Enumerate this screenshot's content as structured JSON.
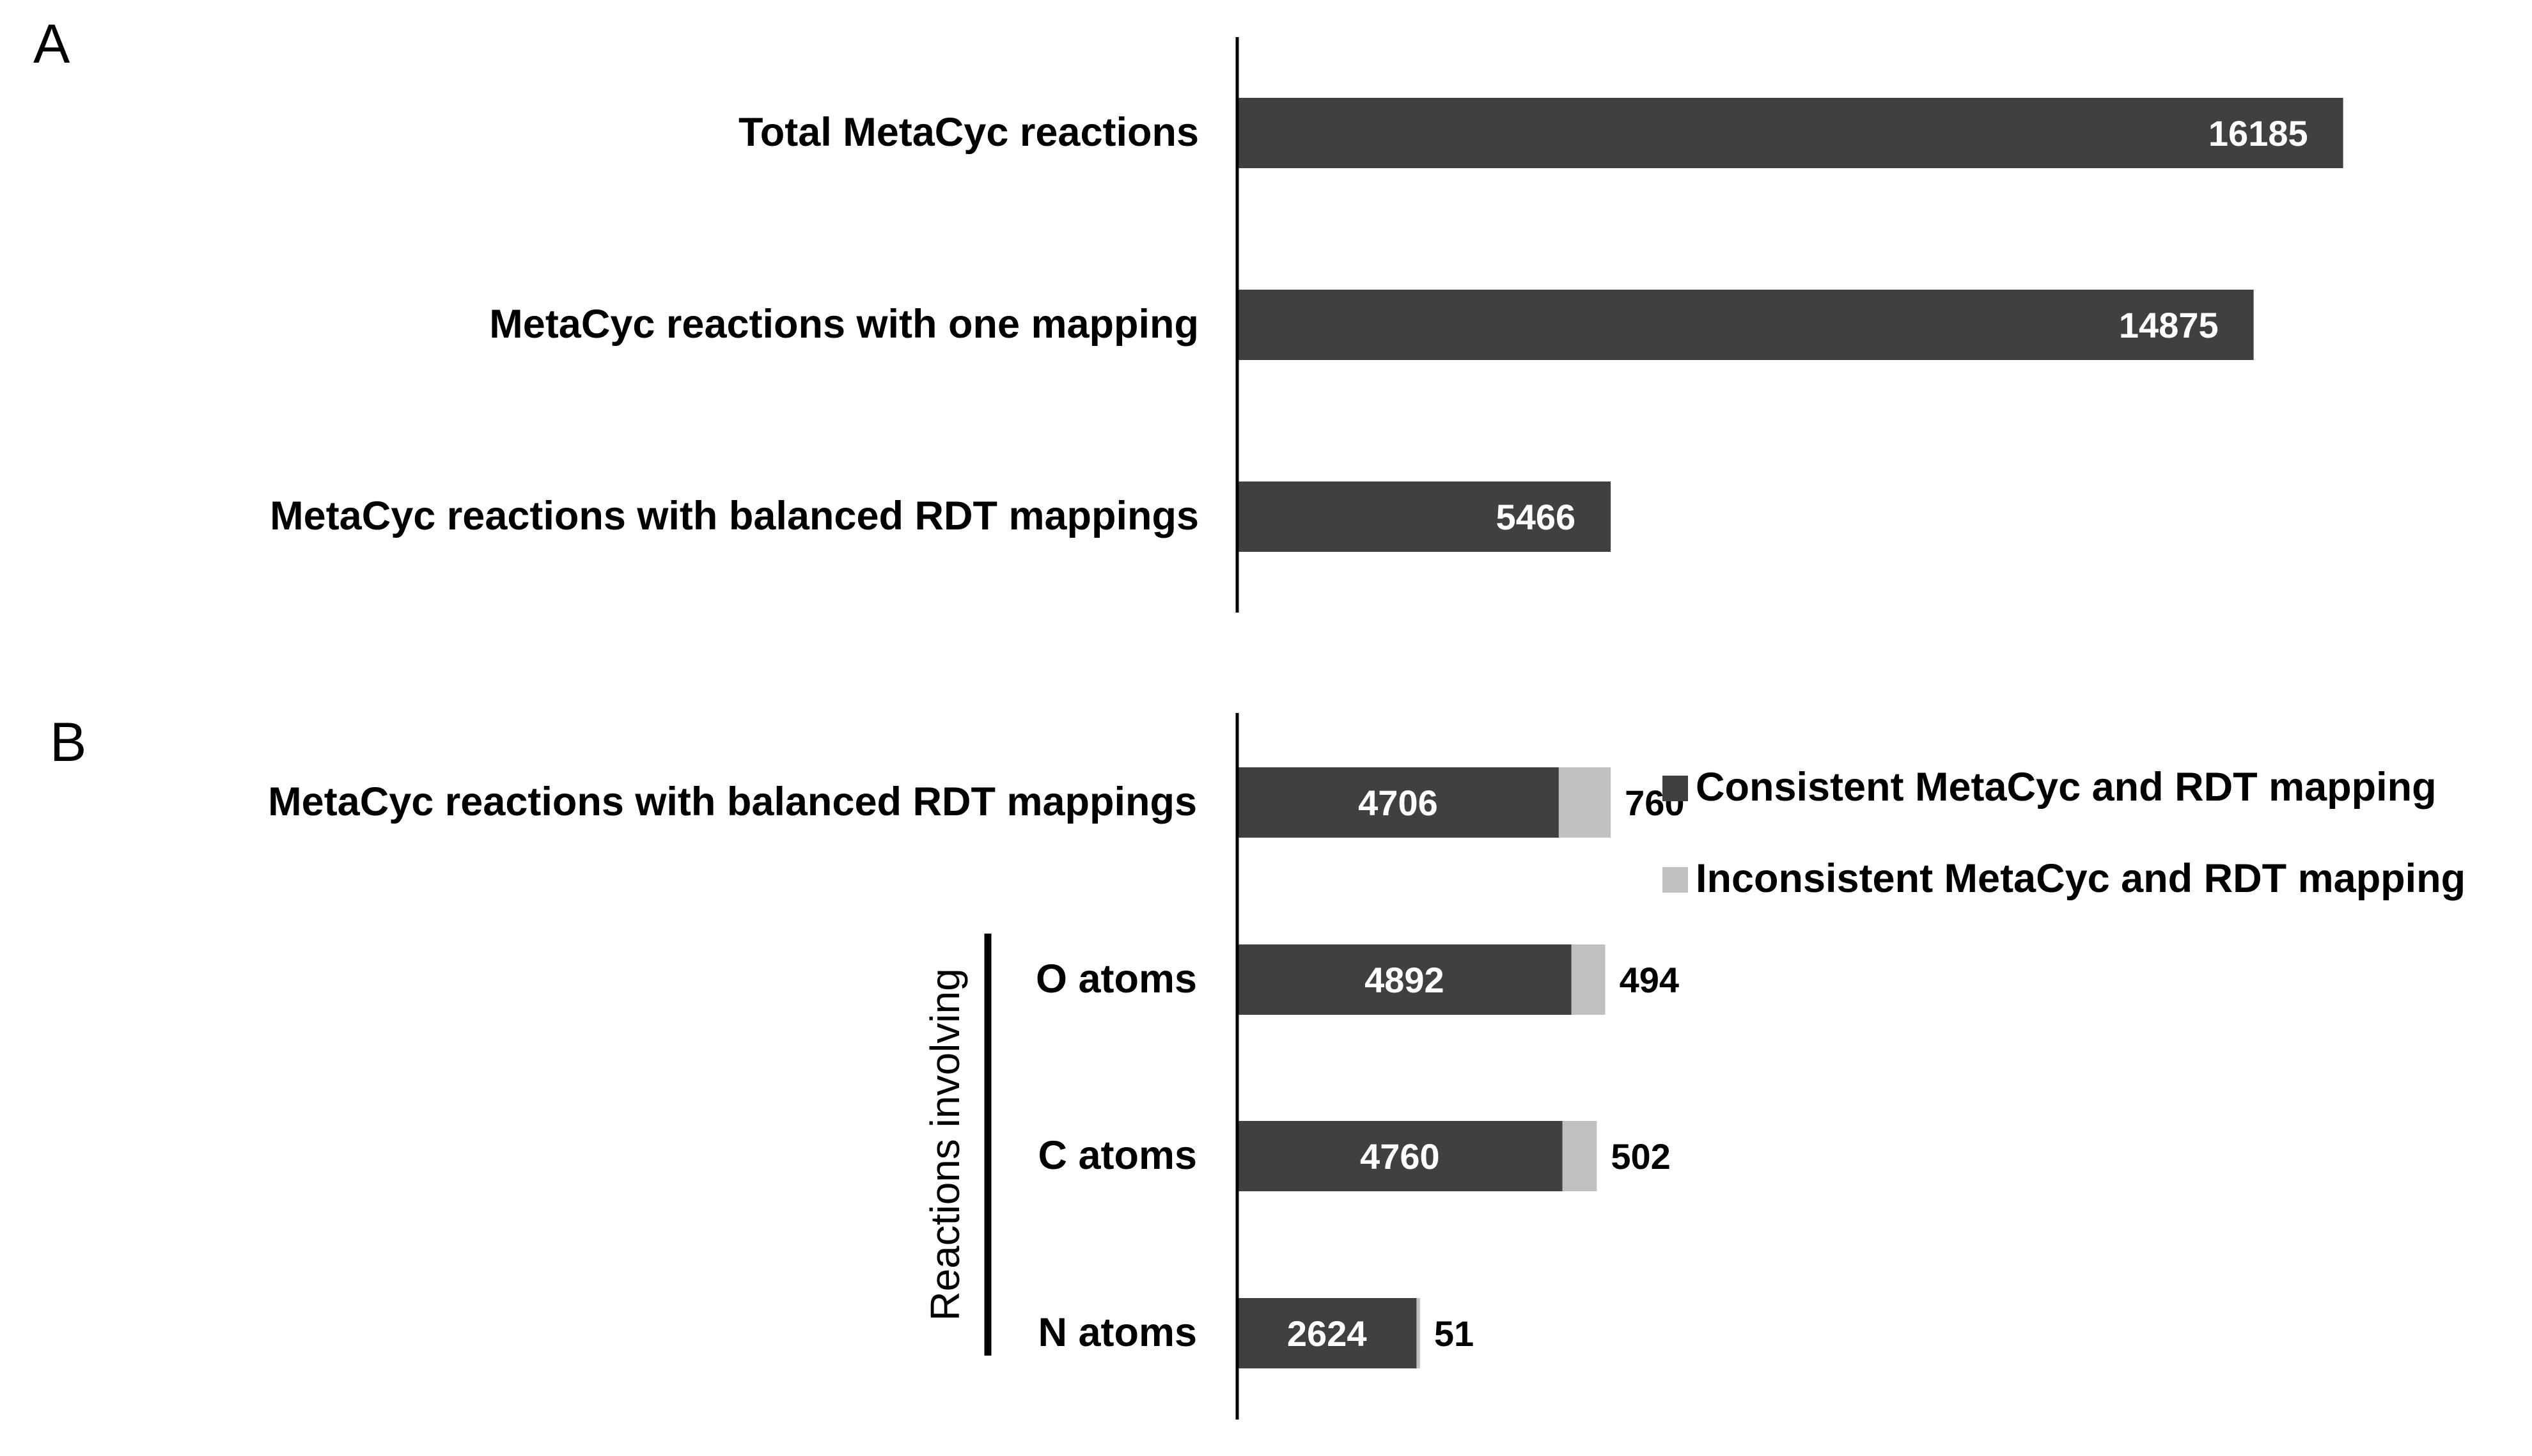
{
  "panels": {
    "a_letter": "A",
    "b_letter": "B"
  },
  "colors": {
    "consistent": "#404040",
    "inconsistent": "#c0c0c0",
    "axis": "#000000",
    "bar_label": "#ffffff",
    "text": "#000000"
  },
  "chart_data": [
    {
      "panel": "A",
      "type": "bar",
      "orientation": "horizontal",
      "categories": [
        "Total MetaCyc reactions",
        "MetaCyc reactions with one mapping",
        "MetaCyc reactions with balanced RDT mappings"
      ],
      "values": [
        16185,
        14875,
        5466
      ],
      "data_labels": [
        "16185",
        "14875",
        "5466"
      ],
      "xlim": [
        0,
        23300
      ],
      "grid": false,
      "legend": "none"
    },
    {
      "panel": "B",
      "type": "bar",
      "orientation": "horizontal",
      "stacked": true,
      "categories": [
        "MetaCyc reactions with balanced RDT mappings",
        "O atoms",
        "C atoms",
        "N atoms"
      ],
      "group_label": "Reactions involving",
      "series": [
        {
          "name": "Consistent MetaCyc and RDT mapping",
          "values": [
            4706,
            4892,
            4760,
            2624
          ],
          "data_labels": [
            "4706",
            "4892",
            "4760",
            "2624"
          ]
        },
        {
          "name": "Inconsistent MetaCyc and RDT mapping",
          "values": [
            760,
            494,
            502,
            51
          ],
          "data_labels": [
            "760",
            "494",
            "502",
            "51"
          ]
        }
      ],
      "xlim": [
        0,
        23300
      ],
      "grid": false,
      "legend": "right"
    }
  ]
}
